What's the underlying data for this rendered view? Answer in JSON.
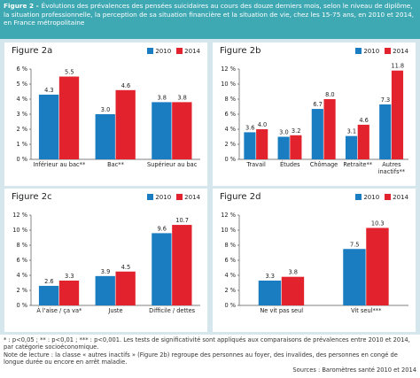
{
  "header": {
    "label": "Figure 2 -",
    "title": "Évolutions des prévalences des pensées suicidaires au cours des douze derniers mois, selon le niveau de diplôme, la situation professionnelle, la perception de sa situation financière et la situation de vie, chez les 15-75 ans, en 2010 et 2014, en France métropolitaine"
  },
  "chart_data": [
    {
      "type": "bar",
      "title": "Figure 2a",
      "categories": [
        "Inférieur au bac**",
        "Bac**",
        "Supérieur au bac"
      ],
      "series": [
        {
          "name": "2010",
          "color": "#1a7cc1",
          "values": [
            4.3,
            3.0,
            3.8
          ],
          "value_labels": [
            "4.3",
            "3.0",
            "3.8"
          ]
        },
        {
          "name": "2014",
          "color": "#e2232d",
          "values": [
            5.5,
            4.6,
            3.8
          ],
          "value_labels": [
            "5.5",
            "4.6",
            "3.8"
          ]
        }
      ],
      "ylim": [
        0,
        6
      ],
      "yticks": [
        {
          "value": 0,
          "label": "0 %"
        },
        {
          "value": 1,
          "label": "1 %"
        },
        {
          "value": 2,
          "label": "2 %"
        },
        {
          "value": 3,
          "label": "3 %"
        },
        {
          "value": 4,
          "label": "4 %"
        },
        {
          "value": 5,
          "label": "5 %"
        },
        {
          "value": 6,
          "label": "6 %"
        }
      ]
    },
    {
      "type": "bar",
      "title": "Figure 2b",
      "categories": [
        "Travail",
        "Études",
        "Chômage",
        "Retraite**",
        "Autres inactifs**"
      ],
      "series": [
        {
          "name": "2010",
          "color": "#1a7cc1",
          "values": [
            3.6,
            3.0,
            6.7,
            3.1,
            7.3
          ],
          "value_labels": [
            "3.6",
            "3.0",
            "6.7",
            "3.1",
            "7.3"
          ]
        },
        {
          "name": "2014",
          "color": "#e2232d",
          "values": [
            4.0,
            3.2,
            8.0,
            4.6,
            11.8
          ],
          "value_labels": [
            "4.0",
            "3.2",
            "8.0",
            "4.6",
            "11.8"
          ]
        }
      ],
      "ylim": [
        0,
        12
      ],
      "yticks": [
        {
          "value": 0,
          "label": "0 %"
        },
        {
          "value": 2,
          "label": "2 %"
        },
        {
          "value": 4,
          "label": "4 %"
        },
        {
          "value": 6,
          "label": "6 %"
        },
        {
          "value": 8,
          "label": "8 %"
        },
        {
          "value": 10,
          "label": "10 %"
        },
        {
          "value": 12,
          "label": "12 %"
        }
      ]
    },
    {
      "type": "bar",
      "title": "Figure 2c",
      "categories": [
        "À l'aise / ça va*",
        "Juste",
        "Difficile / dettes"
      ],
      "series": [
        {
          "name": "2010",
          "color": "#1a7cc1",
          "values": [
            2.6,
            3.9,
            9.6
          ],
          "value_labels": [
            "2.6",
            "3.9",
            "9.6"
          ]
        },
        {
          "name": "2014",
          "color": "#e2232d",
          "values": [
            3.3,
            4.5,
            10.7
          ],
          "value_labels": [
            "3.3",
            "4.5",
            "10.7"
          ]
        }
      ],
      "ylim": [
        0,
        12
      ],
      "yticks": [
        {
          "value": 0,
          "label": "0 %"
        },
        {
          "value": 2,
          "label": "2 %"
        },
        {
          "value": 4,
          "label": "4 %"
        },
        {
          "value": 6,
          "label": "6 %"
        },
        {
          "value": 8,
          "label": "8 %"
        },
        {
          "value": 10,
          "label": "10 %"
        },
        {
          "value": 12,
          "label": "12 %"
        }
      ]
    },
    {
      "type": "bar",
      "title": "Figure 2d",
      "categories": [
        "Ne vit pas seul",
        "Vit seul***"
      ],
      "series": [
        {
          "name": "2010",
          "color": "#1a7cc1",
          "values": [
            3.3,
            7.5
          ],
          "value_labels": [
            "3.3",
            "7.5"
          ]
        },
        {
          "name": "2014",
          "color": "#e2232d",
          "values": [
            3.8,
            10.3
          ],
          "value_labels": [
            "3.8",
            "10.3"
          ]
        }
      ],
      "ylim": [
        0,
        12
      ],
      "yticks": [
        {
          "value": 0,
          "label": "0 %"
        },
        {
          "value": 2,
          "label": "2 %"
        },
        {
          "value": 4,
          "label": "4 %"
        },
        {
          "value": 6,
          "label": "6 %"
        },
        {
          "value": 8,
          "label": "8 %"
        },
        {
          "value": 10,
          "label": "10 %"
        },
        {
          "value": 12,
          "label": "12 %"
        }
      ]
    }
  ],
  "footer": {
    "significance": "* : p<0,05 ; ** : p<0,01 ; *** : p<0,001. Les tests de significativité sont appliqués aux comparaisons de prévalences entre 2010 et 2014, par catégorie socioéconomique.",
    "note": "Note de lecture : la classe « autres inactifs » (Figure 2b) regroupe des personnes au foyer, des invalides, des personnes en congé de longue durée ou encore en arrêt maladie.",
    "source": "Sources : Baromètres santé 2010 et 2014"
  }
}
